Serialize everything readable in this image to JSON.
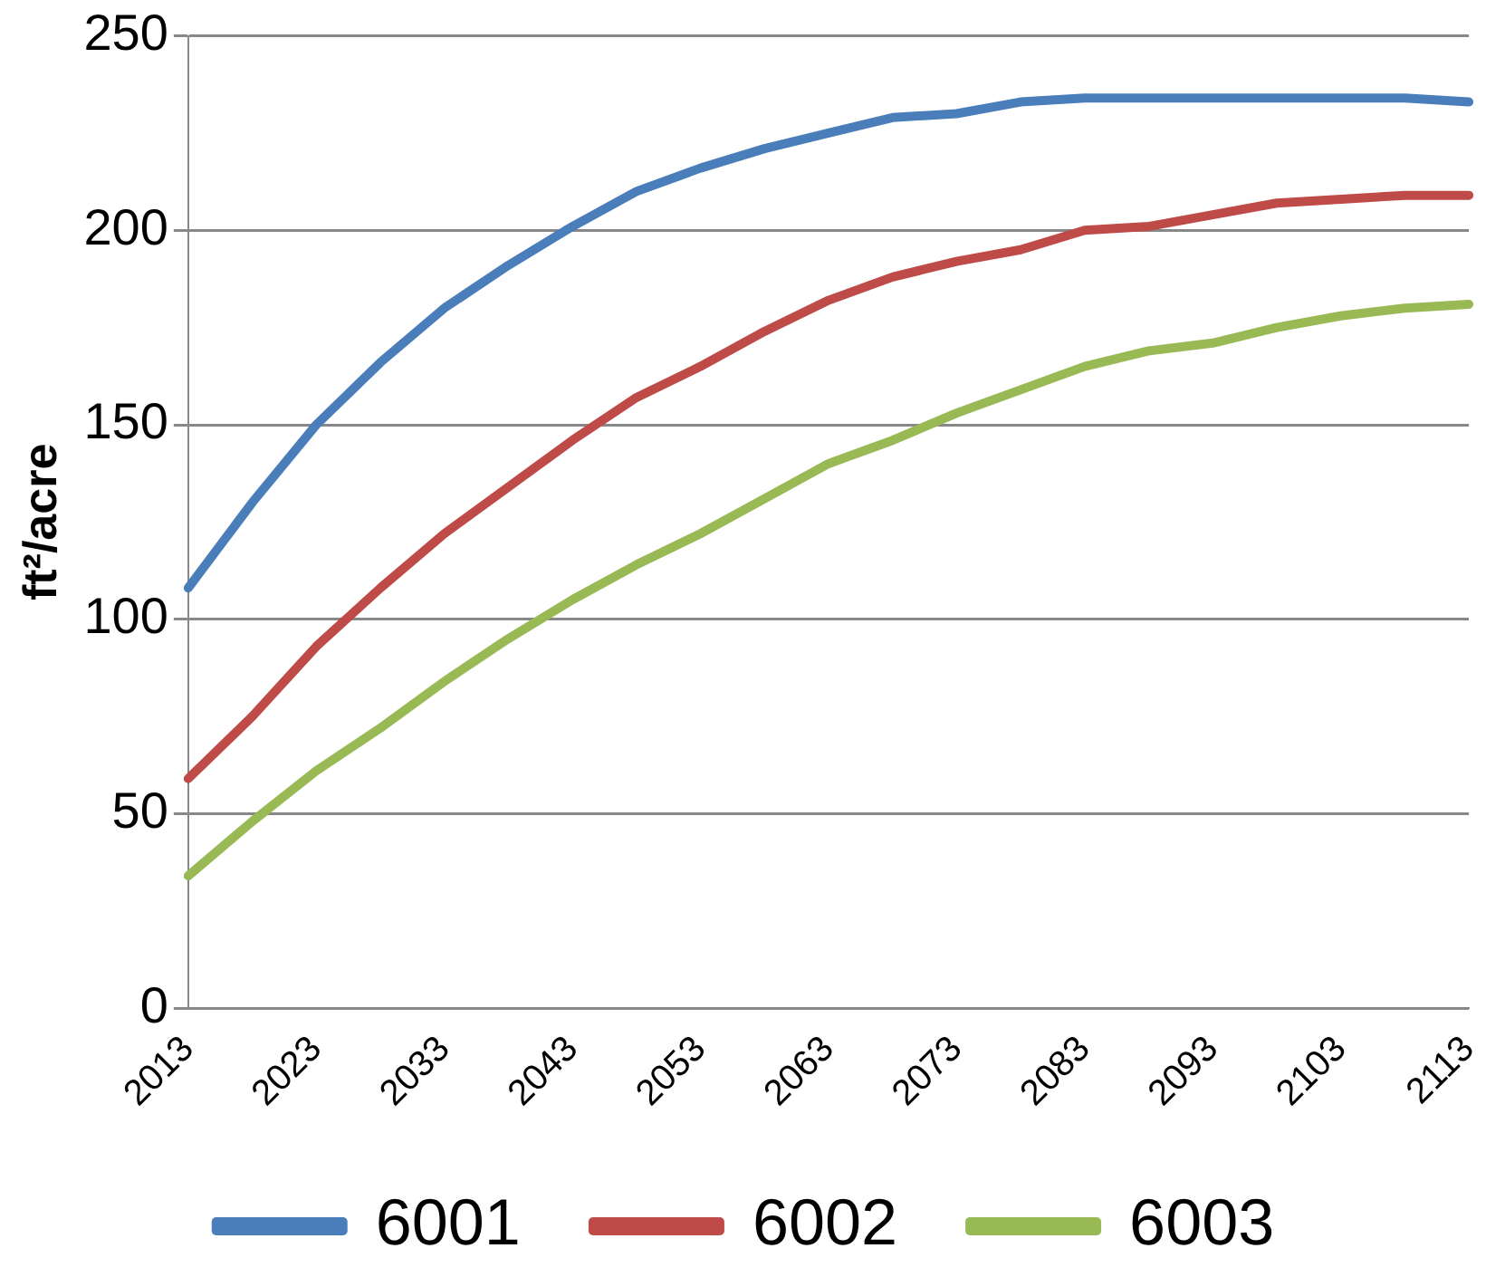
{
  "chart_data": {
    "type": "line",
    "ylabel": "ft²/acre",
    "categories": [
      "2013",
      null,
      "2023",
      null,
      "2033",
      null,
      "2043",
      null,
      "2053",
      null,
      "2063",
      null,
      "2073",
      null,
      "2083",
      null,
      "2093",
      null,
      "2103",
      null,
      "2113"
    ],
    "series": [
      {
        "name": "6001",
        "color": "#4a7ebb",
        "values": [
          108,
          130,
          150,
          166,
          180,
          191,
          201,
          210,
          216,
          221,
          225,
          229,
          230,
          233,
          234,
          234,
          234,
          234,
          234,
          234,
          233
        ]
      },
      {
        "name": "6002",
        "color": "#be4b48",
        "values": [
          59,
          75,
          93,
          108,
          122,
          134,
          146,
          157,
          165,
          174,
          182,
          188,
          192,
          195,
          200,
          201,
          204,
          207,
          208,
          209,
          209
        ]
      },
      {
        "name": "6003",
        "color": "#98b954",
        "values": [
          34,
          48,
          61,
          72,
          84,
          95,
          105,
          114,
          122,
          131,
          140,
          146,
          153,
          159,
          165,
          169,
          171,
          175,
          178,
          180,
          181
        ]
      }
    ],
    "ylim": [
      0,
      250
    ],
    "yticks": [
      0,
      50,
      100,
      150,
      200,
      250
    ],
    "grid": "y",
    "legend": "bottom",
    "marker": "none",
    "line_style": "solid"
  }
}
